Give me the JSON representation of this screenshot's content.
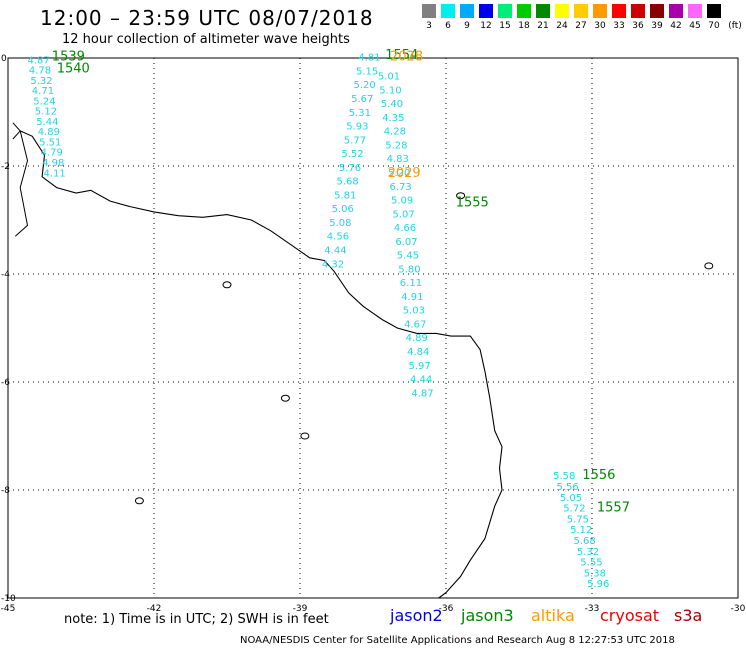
{
  "title": "12:00 – 23:59 UTC 08/07/2018",
  "subtitle": "12 hour collection of altimeter wave heights",
  "legend": {
    "unit": "(ft)",
    "items": [
      {
        "label": "3",
        "color": "#808080"
      },
      {
        "label": "6",
        "color": "#00eeee"
      },
      {
        "label": "9",
        "color": "#00aaff"
      },
      {
        "label": "12",
        "color": "#0000ee"
      },
      {
        "label": "15",
        "color": "#00ee77"
      },
      {
        "label": "18",
        "color": "#00cc00"
      },
      {
        "label": "21",
        "color": "#008800"
      },
      {
        "label": "24",
        "color": "#ffff00"
      },
      {
        "label": "27",
        "color": "#ffcc00"
      },
      {
        "label": "30",
        "color": "#ff9900"
      },
      {
        "label": "33",
        "color": "#ff0000"
      },
      {
        "label": "36",
        "color": "#cc0000"
      },
      {
        "label": "39",
        "color": "#880000"
      },
      {
        "label": "42",
        "color": "#aa00aa"
      },
      {
        "label": "45",
        "color": "#ff66ff"
      },
      {
        "label": "70",
        "color": "#000000"
      }
    ]
  },
  "map": {
    "lon_ticks": [
      "-45",
      "-42",
      "-39",
      "-36",
      "-33",
      "-30"
    ],
    "lat_ticks": [
      "0",
      "-2",
      "-4",
      "-6",
      "-8",
      "-10"
    ],
    "lon_range": [
      -45,
      -30
    ],
    "lat_range": [
      -10,
      0
    ],
    "coast_color": "#000000"
  },
  "tracks": [
    {
      "name": "track-west",
      "lon_start": -44.6,
      "lat_start": -0.1,
      "lon_step": 0.03,
      "lat_step": -0.19,
      "values": [
        "4.87",
        "4.78",
        "5.32",
        "4.71",
        "5.24",
        "5.12",
        "5.44",
        "4.89",
        "5.51",
        "4.79",
        "4.98",
        "4.11"
      ]
    },
    {
      "name": "track-central-a",
      "lon_start": -37.8,
      "lat_start": -0.05,
      "lon_step": -0.05,
      "lat_step": -0.255,
      "values": [
        "4.81",
        "5.15",
        "5.20",
        "5.67",
        "5.31",
        "5.93",
        "5.77",
        "5.52",
        "5.76",
        "5.68",
        "5.81",
        "5.06",
        "5.08",
        "4.56",
        "4.44",
        "4.32"
      ]
    },
    {
      "name": "track-central-b",
      "lon_start": -37.4,
      "lat_start": -0.4,
      "lon_step": 0.03,
      "lat_step": -0.255,
      "values": [
        "5.01",
        "5.10",
        "5.40",
        "4.35",
        "4.28",
        "5.28",
        "4.83",
        "5.20",
        "6.73",
        "5.09",
        "5.07",
        "4.66",
        "6.07",
        "5.45",
        "5.80",
        "6.11",
        "4.91",
        "5.03",
        "4.67",
        "4.89",
        "4.84",
        "5.97",
        "4.44",
        "4.87"
      ]
    },
    {
      "name": "track-east",
      "lon_start": -33.8,
      "lat_start": -7.8,
      "lon_step": 0.07,
      "lat_step": -0.2,
      "values": [
        "5.58",
        "5.56",
        "5.05",
        "5.72",
        "5.75",
        "5.12",
        "5.68",
        "5.32",
        "5.55",
        "5.38",
        "5.96"
      ]
    }
  ],
  "time_labels": [
    {
      "text": "1539",
      "lon": -44.1,
      "lat": -0.05,
      "color": "#008800"
    },
    {
      "text": "1540",
      "lon": -44.0,
      "lat": -0.27,
      "color": "#008800"
    },
    {
      "text": "1554",
      "lon": -37.25,
      "lat": -0.02,
      "color": "#008800"
    },
    {
      "text": "2028",
      "lon": -37.15,
      "lat": -0.05,
      "color": "#ff9900"
    },
    {
      "text": "2029",
      "lon": -37.2,
      "lat": -2.2,
      "color": "#ff9900"
    },
    {
      "text": "1555",
      "lon": -35.8,
      "lat": -2.75,
      "color": "#008800"
    },
    {
      "text": "1556",
      "lon": -33.2,
      "lat": -7.8,
      "color": "#008800"
    },
    {
      "text": "1557",
      "lon": -32.9,
      "lat": -8.4,
      "color": "#008800"
    }
  ],
  "note": "note:  1) Time is in UTC;  2) SWH is in feet",
  "satellites": [
    {
      "name": "jason2",
      "color": "#0000ee"
    },
    {
      "name": "jason3",
      "color": "#008800"
    },
    {
      "name": "altika",
      "color": "#ff9900"
    },
    {
      "name": "cryosat",
      "color": "#ee0000"
    },
    {
      "name": "s3a",
      "color": "#aa0000"
    }
  ],
  "credit": "NOAA/NESDIS Center for Satellite Applications and Research     Aug  8 12:27:53 UTC 2018"
}
